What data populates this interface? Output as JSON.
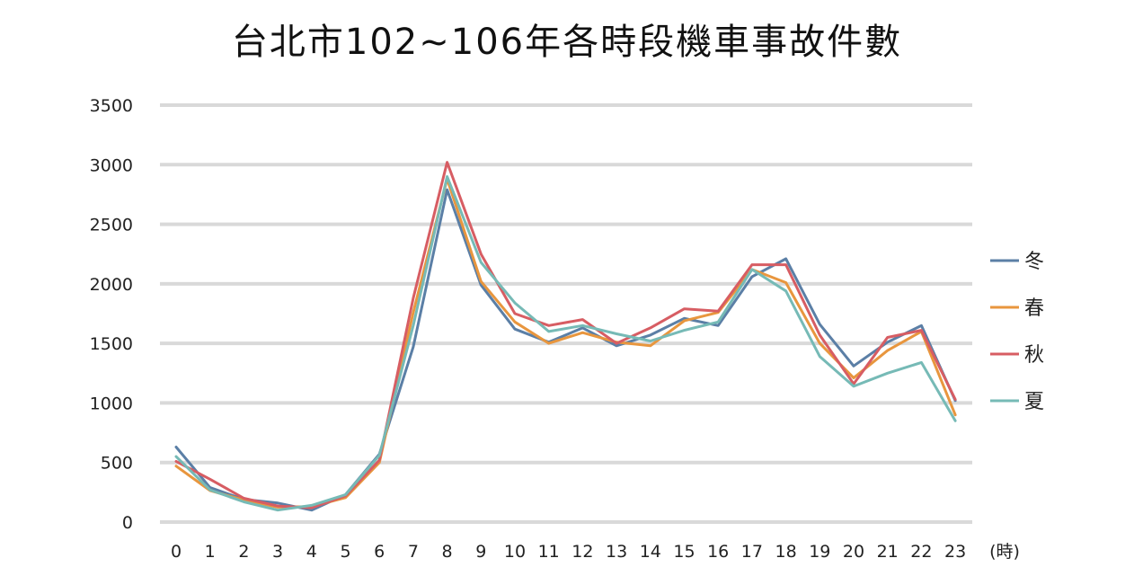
{
  "chart_data": {
    "type": "line",
    "title": "台北市102~106年各時段機車事故件數",
    "xlabel": "(時)",
    "ylabel": "",
    "x": [
      "0",
      "1",
      "2",
      "3",
      "4",
      "5",
      "6",
      "7",
      "8",
      "9",
      "10",
      "11",
      "12",
      "13",
      "14",
      "15",
      "16",
      "17",
      "18",
      "19",
      "20",
      "21",
      "22",
      "23"
    ],
    "ylim": [
      0,
      3500
    ],
    "yticks": [
      "0",
      "500",
      "1000",
      "1500",
      "2000",
      "2500",
      "3000",
      "3500"
    ],
    "grid": true,
    "legend_position": "right",
    "series": [
      {
        "name": "冬",
        "color": "#5b7fa6",
        "values": [
          630,
          290,
          190,
          160,
          100,
          230,
          570,
          1470,
          2790,
          1990,
          1620,
          1510,
          1630,
          1480,
          1570,
          1710,
          1650,
          2060,
          2210,
          1660,
          1310,
          1510,
          1650,
          1020
        ]
      },
      {
        "name": "春",
        "color": "#e8963e",
        "values": [
          470,
          265,
          185,
          125,
          130,
          205,
          500,
          1760,
          2880,
          2020,
          1680,
          1500,
          1590,
          1510,
          1480,
          1690,
          1760,
          2120,
          2010,
          1500,
          1210,
          1440,
          1600,
          900
        ]
      },
      {
        "name": "秋",
        "color": "#d75d63",
        "values": [
          510,
          360,
          200,
          135,
          120,
          220,
          520,
          1880,
          3020,
          2250,
          1750,
          1650,
          1700,
          1500,
          1630,
          1790,
          1770,
          2160,
          2160,
          1570,
          1160,
          1550,
          1610,
          1030
        ]
      },
      {
        "name": "夏",
        "color": "#76bab6",
        "values": [
          550,
          270,
          170,
          100,
          140,
          230,
          560,
          1650,
          2900,
          2180,
          1840,
          1600,
          1650,
          1580,
          1520,
          1610,
          1680,
          2120,
          1940,
          1390,
          1140,
          1250,
          1340,
          850
        ]
      }
    ]
  }
}
